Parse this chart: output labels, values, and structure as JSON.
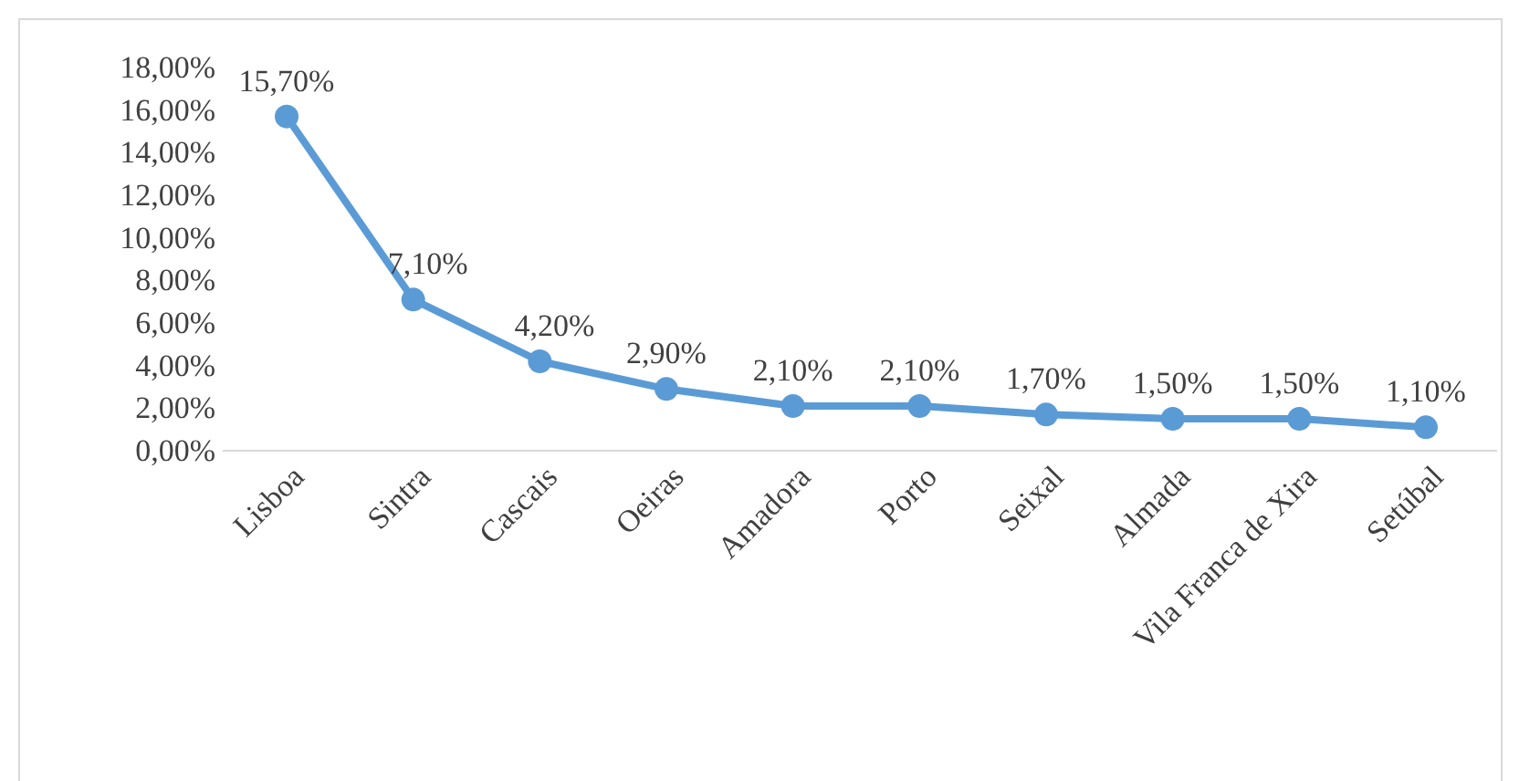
{
  "chart_data": {
    "type": "line",
    "categories": [
      "Lisboa",
      "Sintra",
      "Cascais",
      "Oeiras",
      "Amadora",
      "Porto",
      "Seixal",
      "Almada",
      "Vila Franca de Xira",
      "Setúbal"
    ],
    "series": [
      {
        "color": "#5b9bd5",
        "values": [
          15.7,
          7.1,
          4.2,
          2.9,
          2.1,
          2.1,
          1.7,
          1.5,
          1.5,
          1.1
        ],
        "value_labels": [
          "15,70%",
          "7,10%",
          "4,20%",
          "2,90%",
          "2,10%",
          "2,10%",
          "1,70%",
          "1,50%",
          "1,50%",
          "1,10%"
        ]
      }
    ],
    "ylim": [
      0,
      18
    ],
    "yticks": [
      {
        "value": 0,
        "label": "0,00%"
      },
      {
        "value": 2,
        "label": "2,00%"
      },
      {
        "value": 4,
        "label": "4,00%"
      },
      {
        "value": 6,
        "label": "6,00%"
      },
      {
        "value": 8,
        "label": "8,00%"
      },
      {
        "value": 10,
        "label": "10,00%"
      },
      {
        "value": 12,
        "label": "12,00%"
      },
      {
        "value": 14,
        "label": "14,00%"
      },
      {
        "value": 16,
        "label": "16,00%"
      },
      {
        "value": 18,
        "label": "18,00%"
      }
    ],
    "grid": false,
    "marker": "circle",
    "line_style": "solid"
  }
}
